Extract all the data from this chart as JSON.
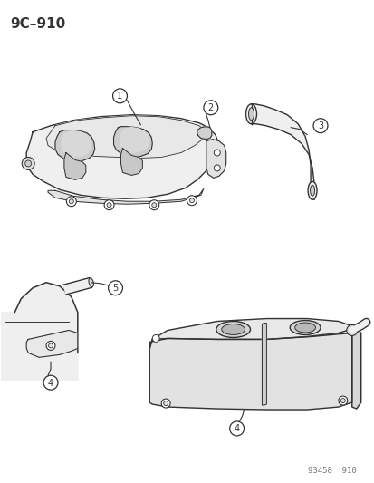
{
  "title": "9C–910",
  "watermark": "93458  910",
  "background_color": "#ffffff",
  "line_color": "#333333",
  "fig_width": 4.14,
  "fig_height": 5.33,
  "dpi": 100
}
